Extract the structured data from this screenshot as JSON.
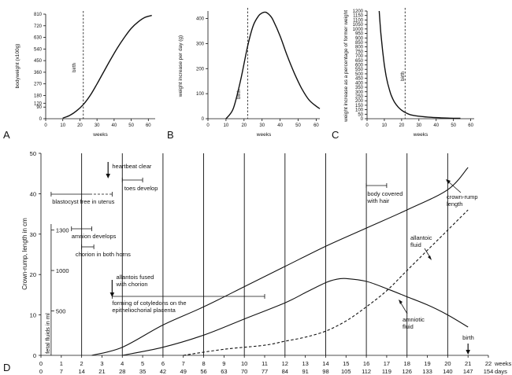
{
  "chart_data": [
    {
      "panel": "A",
      "type": "line",
      "xlabel": "weeks",
      "ylabel": "bodyweight (x100g)",
      "xlim": [
        0,
        64
      ],
      "ylim": [
        0,
        810
      ],
      "xticks": [
        0,
        10,
        20,
        30,
        40,
        50,
        60
      ],
      "yticks": [
        0,
        90,
        120,
        180,
        270,
        360,
        450,
        540,
        630,
        720,
        810
      ],
      "yticks_shown": [
        "0",
        "90",
        "120",
        "180",
        "270",
        "360",
        "450",
        "540",
        "630",
        "720",
        "810"
      ],
      "birth_week": 22,
      "birth_label": "birth",
      "series": [
        {
          "x": [
            10,
            14,
            18,
            22,
            26,
            30,
            34,
            38,
            42,
            46,
            50,
            54,
            58,
            62
          ],
          "y": [
            5,
            25,
            60,
            110,
            180,
            270,
            365,
            460,
            550,
            630,
            700,
            750,
            785,
            800
          ]
        }
      ]
    },
    {
      "panel": "B",
      "type": "line",
      "xlabel": "weeks",
      "ylabel": "weight increase per day (g)",
      "xlim": [
        0,
        62
      ],
      "ylim": [
        0,
        430
      ],
      "xticks": [
        0,
        10,
        20,
        30,
        40,
        50,
        60
      ],
      "yticks": [
        0,
        100,
        200,
        300,
        400
      ],
      "birth_week": 22,
      "birth_label": "birth",
      "series": [
        {
          "x": [
            10,
            14,
            18,
            22,
            25,
            28,
            30,
            32,
            34,
            36,
            40,
            44,
            48,
            52,
            56,
            60,
            62
          ],
          "y": [
            0,
            40,
            150,
            290,
            370,
            410,
            422,
            425,
            415,
            395,
            330,
            250,
            180,
            120,
            75,
            50,
            40
          ]
        }
      ]
    },
    {
      "panel": "C",
      "type": "line",
      "xlabel": "weeks",
      "ylabel": "weight increase as a percentage of former weight",
      "xlim": [
        0,
        62
      ],
      "ylim": [
        0,
        1200
      ],
      "xticks": [
        0,
        10,
        20,
        30,
        40,
        50,
        60
      ],
      "yticks": [
        0,
        50,
        100,
        150,
        200,
        250,
        300,
        350,
        400,
        450,
        500,
        550,
        600,
        650,
        700,
        750,
        800,
        850,
        900,
        950,
        1000,
        1050,
        1100,
        1150,
        1200
      ],
      "birth_week": 22,
      "birth_label": "birth",
      "series": [
        {
          "x": [
            7,
            8,
            9,
            10,
            11,
            12,
            13,
            14,
            16,
            18,
            20,
            22,
            25,
            30,
            35,
            40,
            45,
            50,
            54
          ],
          "y": [
            1200,
            950,
            760,
            600,
            480,
            390,
            320,
            260,
            180,
            130,
            95,
            70,
            45,
            28,
            18,
            12,
            8,
            5,
            4
          ]
        }
      ]
    },
    {
      "panel": "D",
      "type": "line",
      "xlabel": "weeks / days",
      "ylabel": "Crown-rump, length in cm",
      "ylabel2": "fetal fluids in ml",
      "xlim": [
        0,
        22
      ],
      "ylim": [
        0,
        50
      ],
      "weeks": [
        "0",
        "1",
        "2",
        "3",
        "4",
        "5",
        "6",
        "7",
        "8",
        "9",
        "10",
        "11",
        "12",
        "13",
        "14",
        "15",
        "16",
        "17",
        "18",
        "19",
        "20",
        "21",
        "22"
      ],
      "days": [
        "0",
        "7",
        "14",
        "21",
        "28",
        "35",
        "42",
        "49",
        "56",
        "63",
        "70",
        "77",
        "84",
        "91",
        "98",
        "105",
        "112",
        "119",
        "126",
        "133",
        "140",
        "147",
        "154"
      ],
      "weeks_unit": "weeks",
      "days_unit": "days",
      "yticks": [
        0,
        10,
        20,
        30,
        40,
        50
      ],
      "fluid_ticks": [
        {
          "label": "500",
          "y": 11
        },
        {
          "label": "1000",
          "y": 21
        },
        {
          "label": "1300",
          "y": 31
        }
      ],
      "vgrid_weeks": [
        2,
        4,
        6,
        8,
        10,
        12,
        14,
        16,
        18,
        20
      ],
      "series": [
        {
          "name": "crown-rump length",
          "style": "solid",
          "x": [
            2.5,
            4,
            6,
            8,
            10,
            12,
            14,
            16,
            18,
            20,
            21
          ],
          "y": [
            0,
            2,
            7.5,
            12,
            17,
            22,
            27,
            31.5,
            36,
            41,
            46.5
          ]
        },
        {
          "name": "amniotic fluid",
          "style": "solid",
          "x": [
            4,
            6,
            8,
            10,
            12,
            13,
            14,
            14.5,
            15,
            16,
            17,
            18,
            19,
            20,
            21
          ],
          "y": [
            0,
            2,
            5,
            9,
            13,
            15.5,
            18,
            18.8,
            19,
            18.3,
            16.5,
            14.5,
            12.5,
            10,
            7
          ]
        },
        {
          "name": "allantoic fluid",
          "style": "dashed",
          "x": [
            7,
            9,
            11,
            12,
            13,
            14,
            15,
            16,
            17,
            18,
            19,
            20,
            21
          ],
          "y": [
            0,
            1.5,
            2.5,
            3.5,
            4.5,
            6,
            8.5,
            12,
            16,
            21,
            26,
            31,
            36
          ]
        }
      ],
      "annotations": [
        {
          "text": "heartbeat clear",
          "type": "arrow",
          "week": 3.3,
          "y": 43
        },
        {
          "text": "toes develop",
          "type": "bracket",
          "from": 4,
          "to": 5
        },
        {
          "text": "blastocyst free in uterus",
          "type": "bracket",
          "from": 0.5,
          "to": 3.5
        },
        {
          "text": "amnion develops",
          "type": "bracket",
          "from": 1.5,
          "to": 2.5
        },
        {
          "text": "chorion in both horns",
          "type": "bracket",
          "from": 2,
          "to": 2.5
        },
        {
          "text": "allantois fused",
          "text2": "with chorion",
          "type": "arrow",
          "week": 3.5,
          "y": 7
        },
        {
          "text": "forming of cotyledons on the",
          "text2": "epitheliochorial placenta",
          "type": "bracket",
          "from": 3.5,
          "to": 11
        },
        {
          "text": "body covered",
          "text2": "with hair",
          "type": "bracket",
          "from": 16,
          "to": 17
        },
        {
          "text": "crown-rump",
          "text2": "length",
          "type": "label"
        },
        {
          "text": "allantoic",
          "text2": "fluid",
          "type": "label"
        },
        {
          "text": "amniotic",
          "text2": "fluid",
          "type": "label"
        },
        {
          "text": "birth",
          "type": "arrow",
          "week": 21,
          "y": 0
        }
      ]
    }
  ],
  "panel_letters": [
    "A",
    "B",
    "C",
    "D"
  ]
}
